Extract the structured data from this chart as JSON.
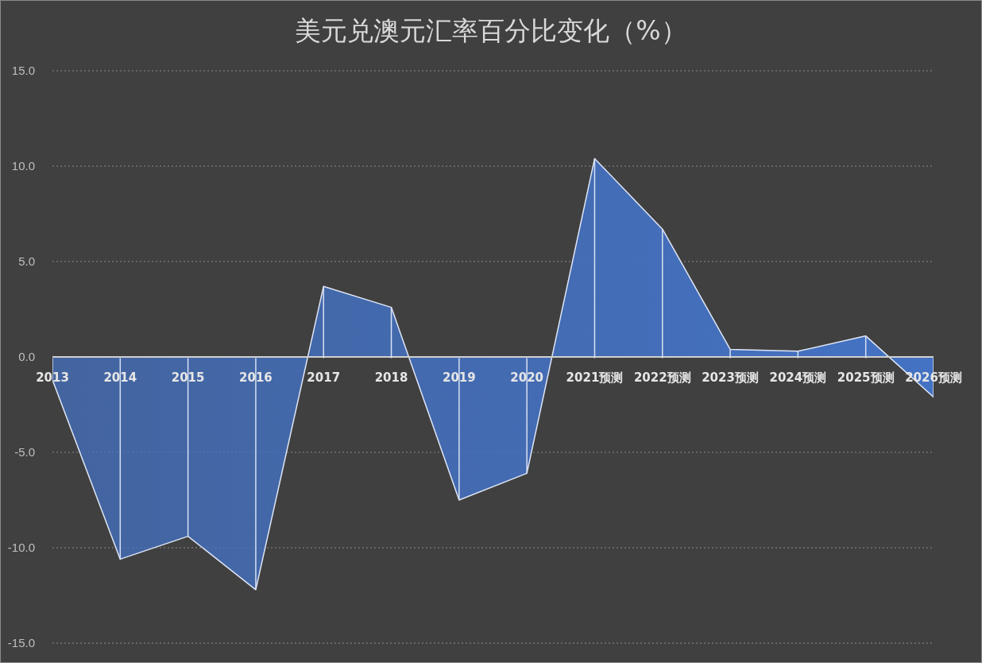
{
  "chart_data": {
    "type": "area",
    "title": "美元兑澳元汇率百分比变化（%）",
    "categories": [
      "2013",
      "2014",
      "2015",
      "2016",
      "2017",
      "2018",
      "2019",
      "2020",
      "2021预测",
      "2022预测",
      "2023预测",
      "2024预测",
      "2025预测",
      "2026预测"
    ],
    "series": [
      {
        "color": "#4472c4",
        "values": [
          -1.2,
          -10.6,
          -9.4,
          -12.2,
          3.7,
          2.6,
          -7.5,
          -6.1,
          10.4,
          6.7,
          0.4,
          0.3,
          1.1,
          -2.1
        ]
      }
    ],
    "ylim": [
      -15,
      15
    ],
    "yticks": [
      {
        "value": -15,
        "label": "-15.0"
      },
      {
        "value": -10,
        "label": "-10.0"
      },
      {
        "value": -5,
        "label": "-5.0"
      },
      {
        "value": 0,
        "label": "0.0"
      },
      {
        "value": 5,
        "label": "5.0"
      },
      {
        "value": 10,
        "label": "10.0"
      },
      {
        "value": 15,
        "label": "15.0"
      }
    ],
    "grid": "y"
  }
}
